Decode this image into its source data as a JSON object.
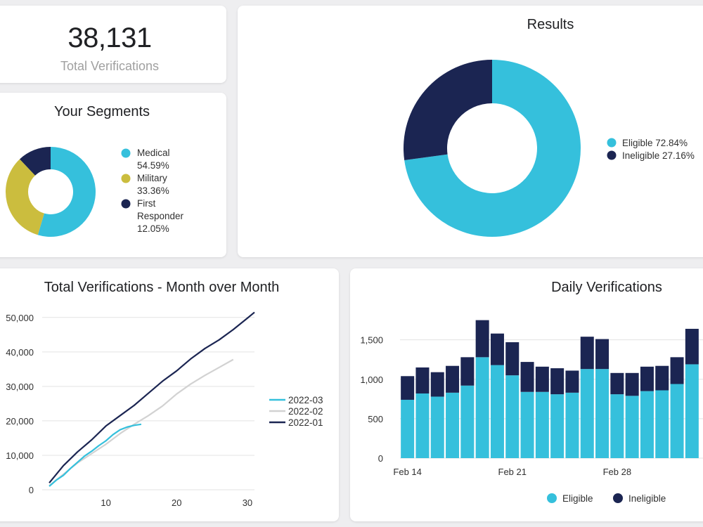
{
  "kpi": {
    "value": "38,131",
    "label": "Total Verifications"
  },
  "colors": {
    "eligible": "#35c0dc",
    "ineligible": "#1b2552",
    "military": "#cbbd3e",
    "prev": "#d2d2d2",
    "grid": "#e3e3e3"
  },
  "chart_data": [
    {
      "id": "segments",
      "type": "pie",
      "title": "Your Segments",
      "slices": [
        {
          "name": "Medical",
          "value": 54.59,
          "legend_lines": [
            "Medical",
            "54.59%"
          ],
          "color": "#35c0dc"
        },
        {
          "name": "Military",
          "value": 33.36,
          "legend_lines": [
            "Military",
            "33.36%"
          ],
          "color": "#cbbd3e"
        },
        {
          "name": "First Responder",
          "value": 12.05,
          "legend_lines": [
            "First",
            "Responder",
            "12.05%"
          ],
          "color": "#1b2552"
        }
      ]
    },
    {
      "id": "results",
      "type": "pie",
      "title": "Results",
      "slices": [
        {
          "name": "Eligible",
          "value": 72.84,
          "legend": "Eligible 72.84%",
          "color": "#35c0dc"
        },
        {
          "name": "Ineligible",
          "value": 27.16,
          "legend": "Ineligible 27.16%",
          "color": "#1b2552"
        }
      ]
    },
    {
      "id": "month-over-month",
      "type": "line",
      "title": "Total Verifications - Month over Month",
      "xlim": [
        1,
        31
      ],
      "ylim": [
        0,
        52000
      ],
      "x_ticks": [
        10,
        20,
        30
      ],
      "y_ticks": [
        0,
        10000,
        20000,
        30000,
        40000,
        50000
      ],
      "y_tick_labels": [
        "0",
        "10,000",
        "20,000",
        "30,000",
        "40,000",
        "50,000"
      ],
      "series": [
        {
          "name": "2022-03",
          "color": "#35c0dc",
          "x": [
            2,
            3,
            4,
            5,
            6,
            7,
            8,
            9,
            10,
            11,
            12,
            13,
            14,
            15
          ],
          "y": [
            1000,
            2800,
            4200,
            6200,
            8000,
            9800,
            11200,
            12800,
            14200,
            16000,
            17400,
            18200,
            18700,
            19000
          ]
        },
        {
          "name": "2022-02",
          "color": "#d2d2d2",
          "x": [
            2,
            4,
            6,
            8,
            10,
            12,
            14,
            16,
            18,
            20,
            22,
            24,
            26,
            28
          ],
          "y": [
            1200,
            4500,
            7800,
            10500,
            13200,
            16300,
            19000,
            21500,
            24300,
            27800,
            30700,
            33200,
            35500,
            37800
          ]
        },
        {
          "name": "2022-01",
          "color": "#1b2552",
          "x": [
            2,
            4,
            6,
            8,
            10,
            12,
            14,
            16,
            18,
            20,
            22,
            24,
            26,
            28,
            30,
            31
          ],
          "y": [
            2000,
            7000,
            11000,
            14500,
            18500,
            21500,
            24500,
            28000,
            31500,
            34500,
            38000,
            41000,
            43500,
            46500,
            49800,
            51500
          ]
        }
      ]
    },
    {
      "id": "daily",
      "type": "bar",
      "stacked": true,
      "title": "Daily Verifications",
      "ylim": [
        0,
        1800
      ],
      "y_ticks": [
        0,
        500,
        1000,
        1500
      ],
      "y_tick_labels": [
        "0",
        "500",
        "1,000",
        "1,500"
      ],
      "x_labels": [
        {
          "index": 0,
          "label": "Feb 14"
        },
        {
          "index": 7,
          "label": "Feb 21"
        },
        {
          "index": 14,
          "label": "Feb 28"
        }
      ],
      "series": [
        {
          "name": "Eligible",
          "color": "#35c0dc",
          "values": [
            740,
            820,
            780,
            830,
            920,
            1280,
            1180,
            1050,
            840,
            840,
            810,
            830,
            1130,
            1130,
            810,
            790,
            850,
            860,
            940,
            1190
          ]
        },
        {
          "name": "Ineligible",
          "color": "#1b2552",
          "values": [
            300,
            330,
            310,
            340,
            360,
            470,
            400,
            420,
            380,
            320,
            330,
            280,
            410,
            380,
            270,
            290,
            310,
            310,
            340,
            450
          ]
        }
      ]
    }
  ]
}
